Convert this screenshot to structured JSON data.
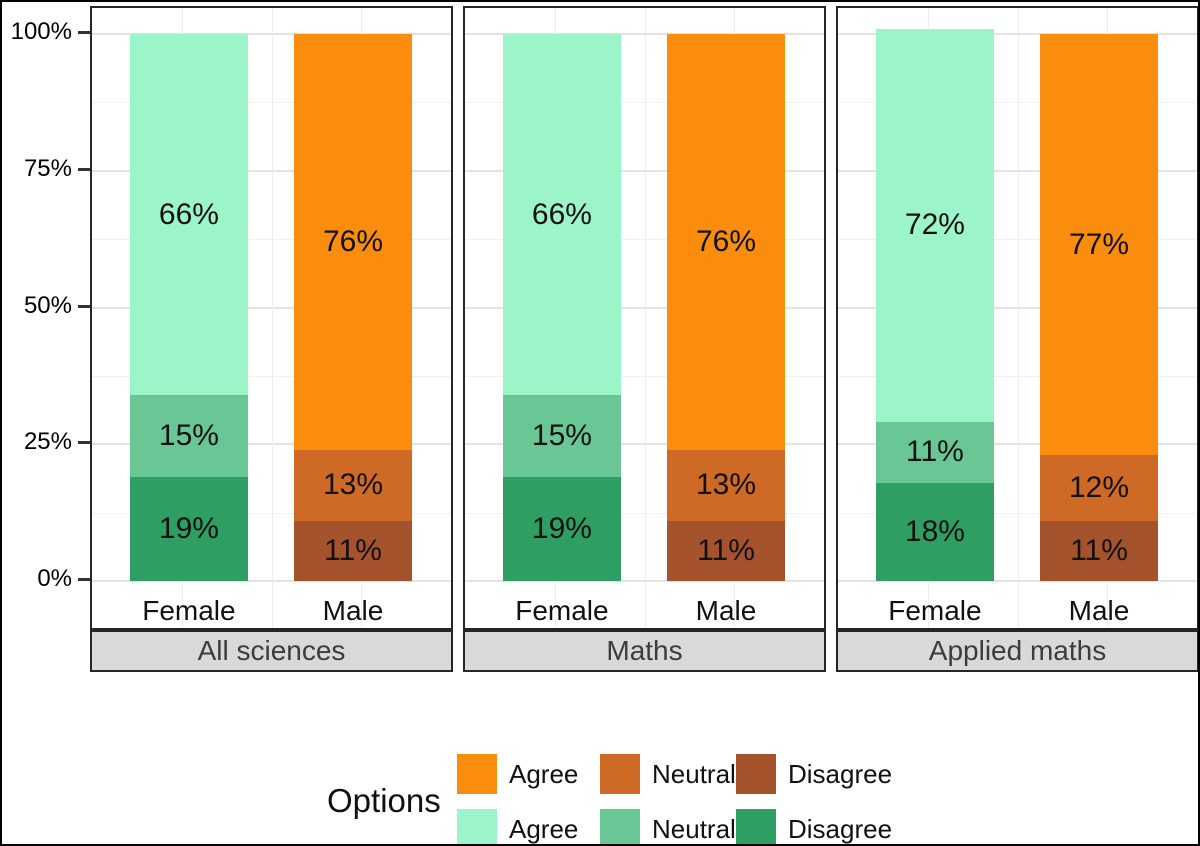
{
  "figure": {
    "background": "#FFFFFF",
    "border_color": "#000000"
  },
  "axes": {
    "y_ticks": [
      {
        "label": "0%",
        "value": 0
      },
      {
        "label": "25%",
        "value": 25
      },
      {
        "label": "50%",
        "value": 50
      },
      {
        "label": "75%",
        "value": 75
      },
      {
        "label": "100%",
        "value": 100
      }
    ],
    "x_categories": [
      "Female",
      "Male"
    ]
  },
  "chart_data": {
    "type": "bar",
    "stacking": "percent_stacked",
    "orientation": "vertical",
    "ylim": [
      0,
      100
    ],
    "grid": "on",
    "legend_position": "bottom",
    "value_suffix": "%",
    "colors": {
      "male": {
        "Agree": "#FA8D0D",
        "Neutral": "#CE6A25",
        "Disagree": "#A4532C"
      },
      "female": {
        "Agree": "#9BF5C8",
        "Neutral": "#68C795",
        "Disagree": "#2E9E62"
      }
    },
    "facets": [
      {
        "label": "All sciences",
        "bars": [
          {
            "category": "Female",
            "palette": "female",
            "segments": [
              {
                "option": "Disagree",
                "value": 19
              },
              {
                "option": "Neutral",
                "value": 15
              },
              {
                "option": "Agree",
                "value": 66
              }
            ]
          },
          {
            "category": "Male",
            "palette": "male",
            "segments": [
              {
                "option": "Disagree",
                "value": 11
              },
              {
                "option": "Neutral",
                "value": 13
              },
              {
                "option": "Agree",
                "value": 76
              }
            ]
          }
        ]
      },
      {
        "label": "Maths",
        "bars": [
          {
            "category": "Female",
            "palette": "female",
            "segments": [
              {
                "option": "Disagree",
                "value": 19
              },
              {
                "option": "Neutral",
                "value": 15
              },
              {
                "option": "Agree",
                "value": 66
              }
            ]
          },
          {
            "category": "Male",
            "palette": "male",
            "segments": [
              {
                "option": "Disagree",
                "value": 11
              },
              {
                "option": "Neutral",
                "value": 13
              },
              {
                "option": "Agree",
                "value": 76
              }
            ]
          }
        ]
      },
      {
        "label": "Applied maths",
        "bars": [
          {
            "category": "Female",
            "palette": "female",
            "segments": [
              {
                "option": "Disagree",
                "value": 18
              },
              {
                "option": "Neutral",
                "value": 11
              },
              {
                "option": "Agree",
                "value": 72
              }
            ]
          },
          {
            "category": "Male",
            "palette": "male",
            "segments": [
              {
                "option": "Disagree",
                "value": 11
              },
              {
                "option": "Neutral",
                "value": 12
              },
              {
                "option": "Agree",
                "value": 77
              }
            ]
          }
        ]
      }
    ]
  },
  "strips": {
    "background": "#D9D9D9",
    "text_color": "#3C3C3C"
  },
  "legend": {
    "title": "Options",
    "rows": [
      [
        {
          "label": "Agree",
          "palette": "male",
          "option": "Agree"
        },
        {
          "label": "Neutral",
          "palette": "male",
          "option": "Neutral"
        },
        {
          "label": "Disagree",
          "palette": "male",
          "option": "Disagree"
        }
      ],
      [
        {
          "label": "Agree",
          "palette": "female",
          "option": "Agree"
        },
        {
          "label": "Neutral",
          "palette": "female",
          "option": "Neutral"
        },
        {
          "label": "Disagree",
          "palette": "female",
          "option": "Disagree"
        }
      ]
    ]
  }
}
